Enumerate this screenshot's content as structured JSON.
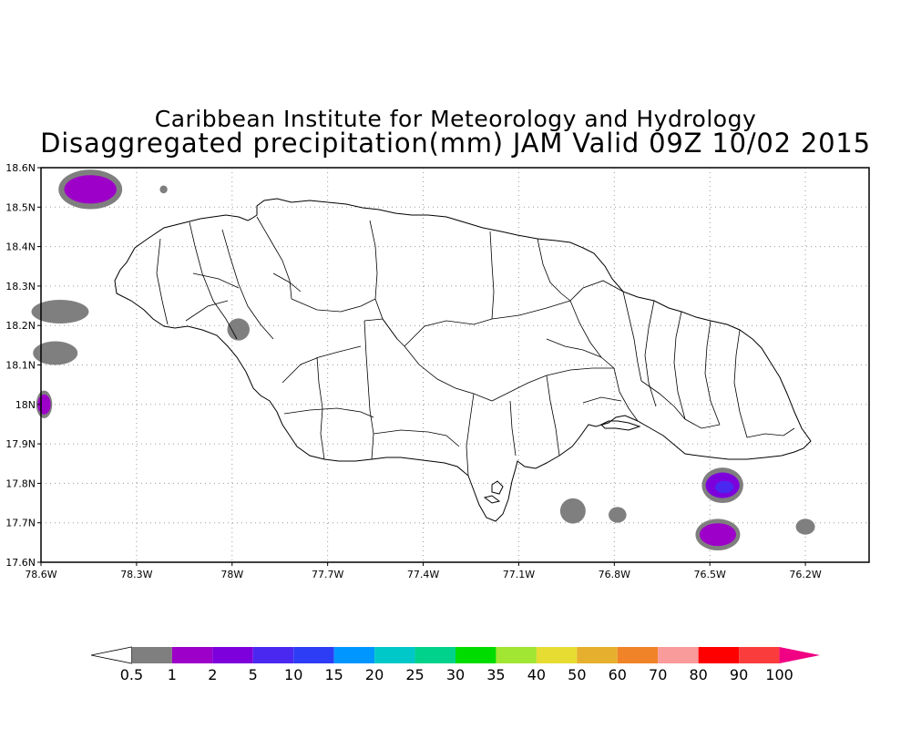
{
  "title": {
    "line1": "Caribbean Institute for Meteorology and Hydrology",
    "line2": "Disaggregated precipitation(mm) JAM Valid 09Z 10/02 2015"
  },
  "map": {
    "lon_range": [
      -78.6,
      -76.0
    ],
    "lat_range": [
      17.6,
      18.6
    ],
    "lat_ticks": [
      {
        "value": 18.6,
        "label": "18.6N"
      },
      {
        "value": 18.5,
        "label": "18.5N"
      },
      {
        "value": 18.4,
        "label": "18.4N"
      },
      {
        "value": 18.3,
        "label": "18.3N"
      },
      {
        "value": 18.2,
        "label": "18.2N"
      },
      {
        "value": 18.1,
        "label": "18.1N"
      },
      {
        "value": 18.0,
        "label": "18N"
      },
      {
        "value": 17.9,
        "label": "17.9N"
      },
      {
        "value": 17.8,
        "label": "17.8N"
      },
      {
        "value": 17.7,
        "label": "17.7N"
      },
      {
        "value": 17.6,
        "label": "17.6N"
      }
    ],
    "lon_ticks": [
      {
        "value": -78.6,
        "label": "78.6W"
      },
      {
        "value": -78.3,
        "label": "78.3W"
      },
      {
        "value": -78.0,
        "label": "78W"
      },
      {
        "value": -77.7,
        "label": "77.7W"
      },
      {
        "value": -77.4,
        "label": "77.4W"
      },
      {
        "value": -77.1,
        "label": "77.1W"
      },
      {
        "value": -76.8,
        "label": "76.8W"
      },
      {
        "value": -76.5,
        "label": "76.5W"
      },
      {
        "value": -76.2,
        "label": "76.2W"
      }
    ],
    "grid": "dotted",
    "coastline_color": "#000000",
    "precip_cells": [
      {
        "lon": -78.445,
        "lat": 18.545,
        "rx": 0.1,
        "ry": 0.05,
        "level": "1-2"
      },
      {
        "lon": -78.215,
        "lat": 18.545,
        "rx": 0.012,
        "ry": 0.01,
        "level": "0.5-1"
      },
      {
        "lon": -78.54,
        "lat": 18.235,
        "rx": 0.09,
        "ry": 0.03,
        "level": "0.5-1"
      },
      {
        "lon": -78.555,
        "lat": 18.13,
        "rx": 0.07,
        "ry": 0.03,
        "level": "0.5-1"
      },
      {
        "lon": -78.59,
        "lat": 18.0,
        "rx": 0.025,
        "ry": 0.035,
        "level": "1-2"
      },
      {
        "lon": -77.98,
        "lat": 18.19,
        "rx": 0.035,
        "ry": 0.028,
        "level": "0.5-1"
      },
      {
        "lon": -76.93,
        "lat": 17.73,
        "rx": 0.04,
        "ry": 0.032,
        "level": "0.5-1"
      },
      {
        "lon": -76.79,
        "lat": 17.72,
        "rx": 0.028,
        "ry": 0.02,
        "level": "0.5-1"
      },
      {
        "lon": -76.46,
        "lat": 17.795,
        "rx": 0.065,
        "ry": 0.045,
        "level": "2-5"
      },
      {
        "lon": -76.475,
        "lat": 17.67,
        "rx": 0.07,
        "ry": 0.04,
        "level": "1-2"
      },
      {
        "lon": -76.2,
        "lat": 17.69,
        "rx": 0.03,
        "ry": 0.02,
        "level": "0.5-1"
      }
    ]
  },
  "legend": {
    "colors": [
      "#ffffff",
      "#7f7f7f",
      "#9d00c8",
      "#7d00dc",
      "#4b28f0",
      "#2d3cf5",
      "#0096ff",
      "#00c8c8",
      "#00d28c",
      "#00dc00",
      "#a0e632",
      "#e6dc32",
      "#e6af2d",
      "#f08228",
      "#fa9b9b",
      "#ff0000",
      "#fa3c3c",
      "#f00082"
    ],
    "labels": [
      "0.5",
      "1",
      "2",
      "5",
      "10",
      "15",
      "20",
      "25",
      "30",
      "35",
      "40",
      "50",
      "60",
      "70",
      "80",
      "90",
      "100"
    ]
  }
}
